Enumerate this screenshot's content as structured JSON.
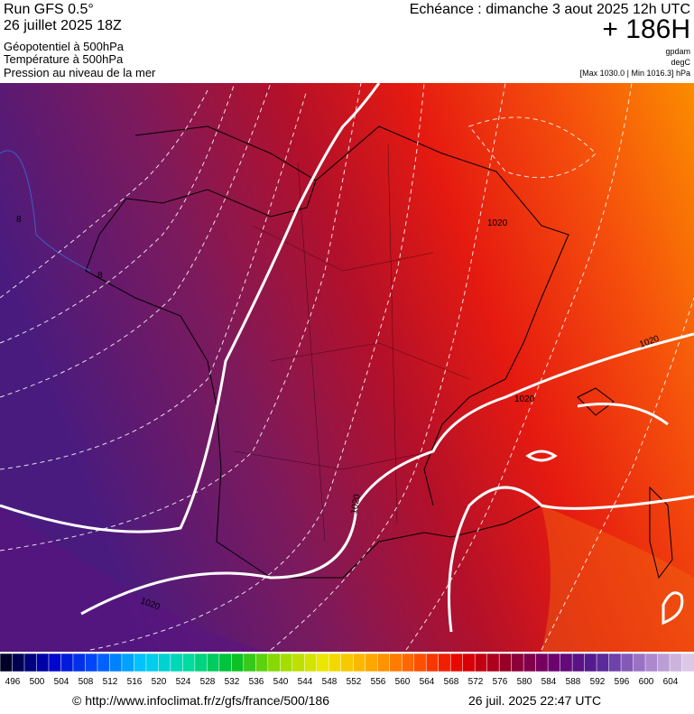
{
  "header": {
    "run": "Run GFS 0.5°",
    "date": "26 juillet 2025 18Z",
    "title": "Géopotentiel à 500hPa",
    "line2": "Température à 500hPa",
    "line3": "Pression au niveau de la mer",
    "echeance": "Echéance : dimanche 3 aout 2025 12h UTC",
    "hour": "+ 186H",
    "unit1": "gpdam",
    "unit2": "degC",
    "minmax": "[Max 1030.0 | Min 1016.3] hPa"
  },
  "contour_labels": [
    "1020",
    "1020",
    "1020",
    "1020",
    "1020",
    "8",
    "8"
  ],
  "legend": {
    "labels": [
      496,
      500,
      504,
      508,
      512,
      516,
      520,
      524,
      528,
      532,
      536,
      540,
      544,
      548,
      552,
      556,
      560,
      564,
      568,
      572,
      576,
      580,
      584,
      588,
      592,
      596,
      600,
      604
    ]
  },
  "footer": {
    "url": "© http://www.infoclimat.fr/z/gfs/france/500/186",
    "timestamp": "26 juil. 2025 22:47 UTC"
  }
}
